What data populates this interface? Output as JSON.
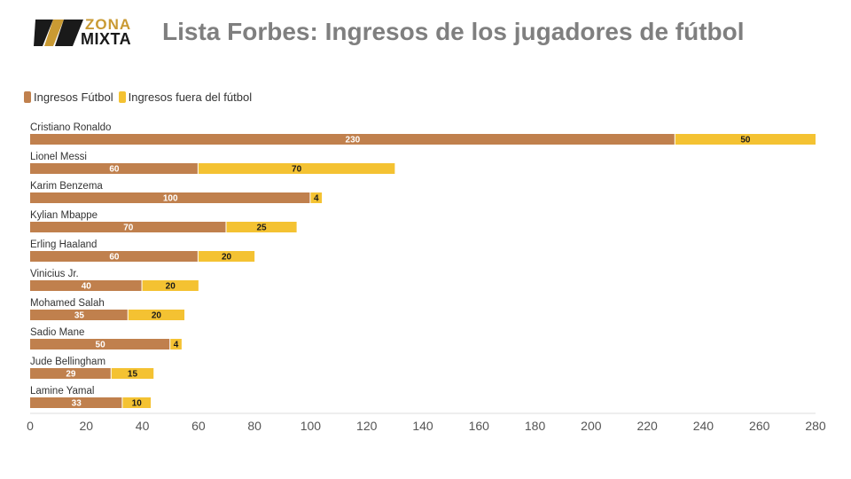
{
  "brand": {
    "line1": "ZONA",
    "line2": "MIXTA"
  },
  "title": "Lista Forbes: Ingresos de los jugadores de fútbol",
  "colors": {
    "football": "#c0804d",
    "offfield": "#f4c232"
  },
  "chart_data": {
    "type": "bar",
    "orientation": "horizontal",
    "stacked": true,
    "title": "Lista Forbes: Ingresos de los jugadores de fútbol",
    "categories": [
      "Cristiano Ronaldo",
      "Lionel Messi",
      "Karim Benzema",
      "Kylian Mbappe",
      "Erling Haaland",
      "Vinicius Jr.",
      "Mohamed Salah",
      "Sadio Mane",
      "Jude Bellingham",
      "Lamine Yamal"
    ],
    "series": [
      {
        "name": "Ingresos Fútbol",
        "values": [
          230,
          60,
          100,
          70,
          60,
          40,
          35,
          50,
          29,
          33
        ]
      },
      {
        "name": "Ingresos fuera del fútbol",
        "values": [
          50,
          70,
          4,
          25,
          20,
          20,
          20,
          4,
          15,
          10
        ]
      }
    ],
    "xlim": [
      0,
      280
    ],
    "xticks": [
      0,
      20,
      40,
      60,
      80,
      100,
      120,
      140,
      160,
      180,
      200,
      220,
      240,
      260,
      280
    ],
    "legend": "top-left",
    "grid": false
  }
}
